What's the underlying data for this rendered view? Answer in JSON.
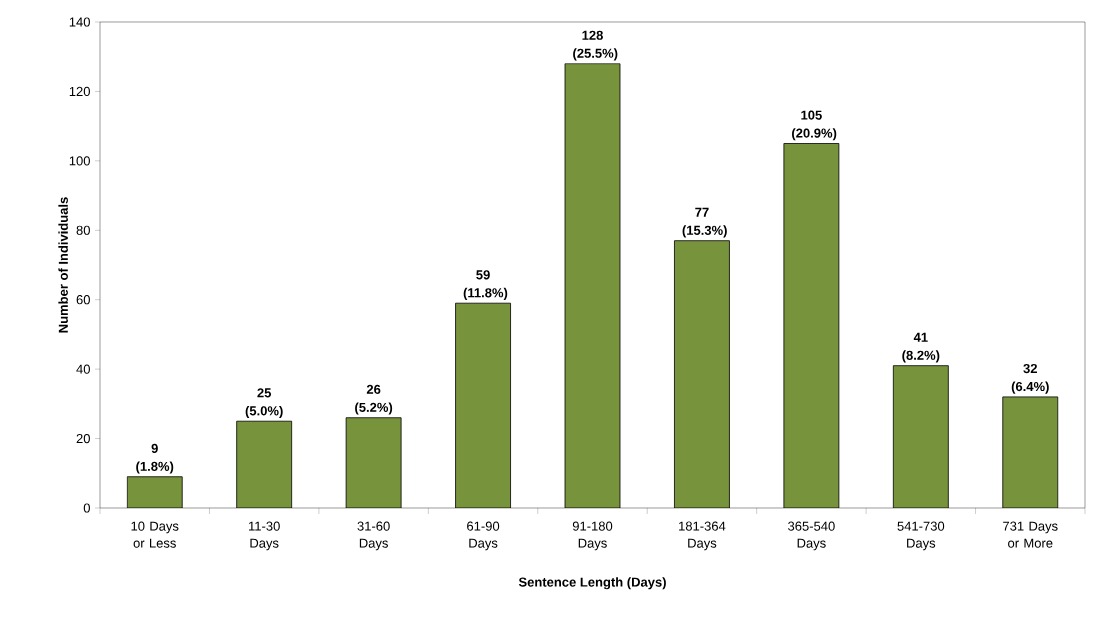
{
  "chart_data": {
    "type": "bar",
    "xlabel": "Sentence Length (Days)",
    "ylabel": "Number of Individuals",
    "categories": [
      "10 Days or Less",
      "11-30 Days",
      "31-60 Days",
      "61-90 Days",
      "91-180 Days",
      "181-364 Days",
      "365-540 Days",
      "541-730 Days",
      "731 Days or More"
    ],
    "values": [
      9,
      25,
      26,
      59,
      128,
      77,
      105,
      41,
      32
    ],
    "value_labels": [
      "9 (1.8%)",
      "25 (5.0%)",
      "26 (5.2%)",
      "59 (11.8%)",
      "128 (25.5%)",
      "77 (15.3%)",
      "105 (20.9%)",
      "41 (8.2%)",
      "32 (6.4%)"
    ],
    "color": "#77933c",
    "ylim": [
      0,
      140
    ],
    "yticks": [
      0,
      20,
      40,
      60,
      80,
      100,
      120,
      140
    ]
  }
}
